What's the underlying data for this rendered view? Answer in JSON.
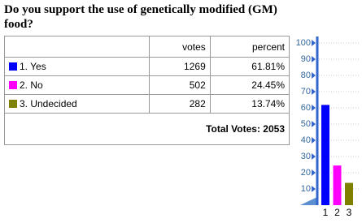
{
  "title": "Do you support the use of genetically modified (GM) food?",
  "table": {
    "header": [
      "votes",
      "percent"
    ],
    "rows": [
      [
        "1. Yes",
        "1269",
        "61.81%"
      ],
      [
        "2. No",
        "502",
        "24.45%"
      ],
      [
        "3. Undecided",
        "282",
        "13.74%"
      ]
    ],
    "total": "Total Votes: 2053"
  },
  "chart_data": {
    "type": "bar",
    "categories": [
      "1",
      "2",
      "3"
    ],
    "values": [
      61.81,
      24.45,
      13.74
    ],
    "colors": [
      "#0000ff",
      "#ff00ff",
      "#808000"
    ],
    "ylim": [
      0,
      100
    ],
    "yticks": [
      10,
      20,
      30,
      40,
      50,
      60,
      70,
      80,
      90,
      100
    ],
    "grid": true
  }
}
